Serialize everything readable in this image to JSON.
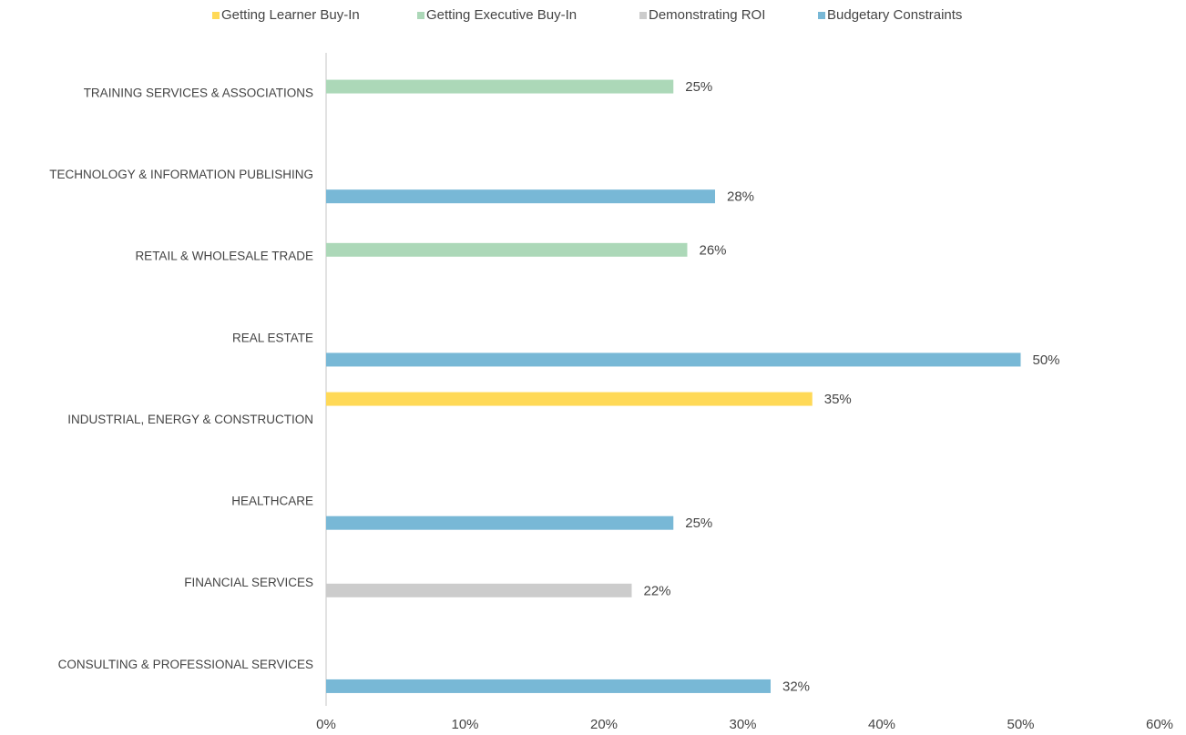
{
  "chart_data": {
    "type": "bar",
    "orientation": "horizontal",
    "categories": [
      "TRAINING SERVICES & ASSOCIATIONS",
      "TECHNOLOGY & INFORMATION PUBLISHING",
      "RETAIL & WHOLESALE TRADE",
      "REAL ESTATE",
      "INDUSTRIAL, ENERGY & CONSTRUCTION",
      "HEALTHCARE",
      "FINANCIAL SERVICES",
      "CONSULTING & PROFESSIONAL SERVICES"
    ],
    "series": [
      {
        "name": "Getting Learner Buy-In",
        "color": "#ffd957",
        "values": [
          null,
          null,
          null,
          null,
          35,
          null,
          null,
          null
        ],
        "value_labels": [
          null,
          null,
          null,
          null,
          "35%",
          null,
          null,
          null
        ]
      },
      {
        "name": "Getting Executive Buy-In",
        "color": "#acd8b8",
        "values": [
          25,
          null,
          26,
          null,
          null,
          null,
          null,
          null
        ],
        "value_labels": [
          "25%",
          null,
          "26%",
          null,
          null,
          null,
          null,
          null
        ]
      },
      {
        "name": "Demonstrating ROI",
        "color": "#cccccc",
        "values": [
          null,
          null,
          null,
          null,
          null,
          null,
          22,
          null
        ],
        "value_labels": [
          null,
          null,
          null,
          null,
          null,
          null,
          "22%",
          null
        ]
      },
      {
        "name": "Budgetary Constraints",
        "color": "#78b8d6",
        "values": [
          null,
          28,
          null,
          50,
          null,
          25,
          null,
          32
        ],
        "value_labels": [
          null,
          "28%",
          null,
          "50%",
          null,
          "25%",
          null,
          "32%"
        ]
      }
    ],
    "xlim": [
      0,
      60
    ],
    "xticks": [
      {
        "value": 0,
        "label": "0%"
      },
      {
        "value": 10,
        "label": "10%"
      },
      {
        "value": 20,
        "label": "20%"
      },
      {
        "value": 30,
        "label": "30%"
      },
      {
        "value": 40,
        "label": "40%"
      },
      {
        "value": 50,
        "label": "50%"
      },
      {
        "value": 60,
        "label": "60%"
      }
    ],
    "legend": "top"
  }
}
